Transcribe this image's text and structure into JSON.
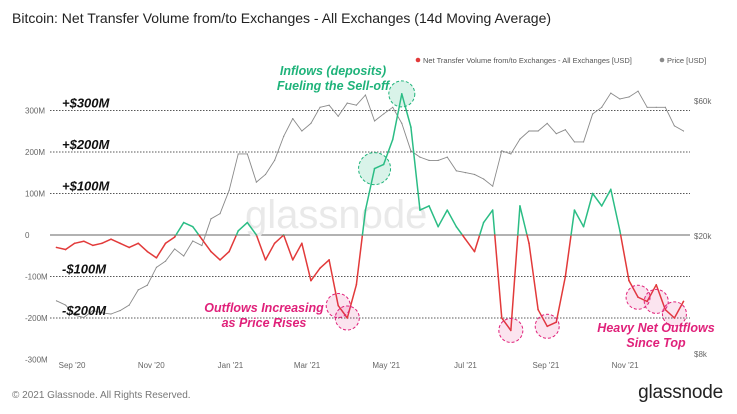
{
  "title": "Bitcoin: Net Transfer Volume from/to Exchanges - All Exchanges (14d Moving Average)",
  "footer": "© 2021 Glassnode. All Rights Reserved.",
  "brand": "glassnode",
  "watermark": "glassnode",
  "colors": {
    "net_positive": "#2bbd85",
    "net_negative": "#e23a3a",
    "price": "#8a8a8a",
    "highlight_green": "#1fb37a",
    "highlight_pink": "#e0217a"
  },
  "chart_data": {
    "type": "line",
    "title": "Bitcoin: Net Transfer Volume from/to Exchanges - All Exchanges (14d Moving Average)",
    "x_ticks": [
      "Sep '20",
      "Nov '20",
      "Jan '21",
      "Mar '21",
      "May '21",
      "Jul '21",
      "Sep '21",
      "Nov '21"
    ],
    "y_left_ticks": [
      "300M",
      "200M",
      "100M",
      "0",
      "-100M",
      "-200M",
      "-300M"
    ],
    "y_left_range": [
      -300000000,
      300000000
    ],
    "y_right_ticks": [
      "$60k",
      "$20k",
      "$8k"
    ],
    "y_right_scale": "log",
    "legend_placement": "top-right",
    "series": [
      {
        "name": "Net Transfer Volume from/to Exchanges - All Exchanges [USD]",
        "unit": "USD",
        "values": [
          [
            "2020-08-20",
            -30
          ],
          [
            "2020-08-27",
            -35
          ],
          [
            "2020-09-03",
            -20
          ],
          [
            "2020-09-10",
            -15
          ],
          [
            "2020-09-17",
            -25
          ],
          [
            "2020-09-24",
            -20
          ],
          [
            "2020-10-01",
            -10
          ],
          [
            "2020-10-08",
            -20
          ],
          [
            "2020-10-15",
            -30
          ],
          [
            "2020-10-22",
            -20
          ],
          [
            "2020-10-29",
            -40
          ],
          [
            "2020-11-05",
            -55
          ],
          [
            "2020-11-12",
            -20
          ],
          [
            "2020-11-19",
            -5
          ],
          [
            "2020-11-26",
            30
          ],
          [
            "2020-12-03",
            20
          ],
          [
            "2020-12-10",
            -10
          ],
          [
            "2020-12-17",
            -40
          ],
          [
            "2020-12-24",
            -60
          ],
          [
            "2020-12-31",
            -40
          ],
          [
            "2021-01-07",
            10
          ],
          [
            "2021-01-14",
            30
          ],
          [
            "2021-01-21",
            0
          ],
          [
            "2021-01-28",
            -60
          ],
          [
            "2021-02-04",
            -20
          ],
          [
            "2021-02-11",
            0
          ],
          [
            "2021-02-18",
            -60
          ],
          [
            "2021-02-25",
            -20
          ],
          [
            "2021-03-04",
            -110
          ],
          [
            "2021-03-11",
            -80
          ],
          [
            "2021-03-18",
            -60
          ],
          [
            "2021-03-25",
            -170
          ],
          [
            "2021-04-01",
            -200
          ],
          [
            "2021-04-08",
            -120
          ],
          [
            "2021-04-15",
            60
          ],
          [
            "2021-04-22",
            160
          ],
          [
            "2021-04-29",
            170
          ],
          [
            "2021-05-06",
            230
          ],
          [
            "2021-05-13",
            340
          ],
          [
            "2021-05-20",
            260
          ],
          [
            "2021-05-27",
            60
          ],
          [
            "2021-06-03",
            70
          ],
          [
            "2021-06-10",
            20
          ],
          [
            "2021-06-17",
            60
          ],
          [
            "2021-06-24",
            20
          ],
          [
            "2021-07-01",
            -10
          ],
          [
            "2021-07-08",
            -40
          ],
          [
            "2021-07-15",
            30
          ],
          [
            "2021-07-22",
            60
          ],
          [
            "2021-07-29",
            -200
          ],
          [
            "2021-08-05",
            -230
          ],
          [
            "2021-08-12",
            70
          ],
          [
            "2021-08-19",
            -20
          ],
          [
            "2021-08-26",
            -180
          ],
          [
            "2021-09-02",
            -220
          ],
          [
            "2021-09-09",
            -210
          ],
          [
            "2021-09-16",
            -100
          ],
          [
            "2021-09-23",
            60
          ],
          [
            "2021-09-30",
            20
          ],
          [
            "2021-10-07",
            100
          ],
          [
            "2021-10-14",
            70
          ],
          [
            "2021-10-21",
            110
          ],
          [
            "2021-10-28",
            10
          ],
          [
            "2021-11-04",
            -110
          ],
          [
            "2021-11-11",
            -150
          ],
          [
            "2021-11-18",
            -160
          ],
          [
            "2021-11-25",
            -120
          ],
          [
            "2021-12-02",
            -180
          ],
          [
            "2021-12-09",
            -200
          ],
          [
            "2021-12-16",
            -160
          ]
        ]
      },
      {
        "name": "Price [USD]",
        "unit": "USD",
        "values": [
          [
            "2020-08-20",
            11800
          ],
          [
            "2020-08-27",
            11400
          ],
          [
            "2020-09-03",
            10500
          ],
          [
            "2020-09-10",
            10300
          ],
          [
            "2020-09-17",
            10900
          ],
          [
            "2020-09-24",
            10700
          ],
          [
            "2020-10-01",
            10600
          ],
          [
            "2020-10-08",
            10900
          ],
          [
            "2020-10-15",
            11400
          ],
          [
            "2020-10-22",
            12900
          ],
          [
            "2020-10-29",
            13400
          ],
          [
            "2020-11-05",
            15500
          ],
          [
            "2020-11-12",
            16300
          ],
          [
            "2020-11-19",
            18000
          ],
          [
            "2020-11-26",
            17000
          ],
          [
            "2020-12-03",
            19200
          ],
          [
            "2020-12-10",
            18500
          ],
          [
            "2020-12-17",
            23000
          ],
          [
            "2020-12-24",
            24000
          ],
          [
            "2020-12-31",
            29000
          ],
          [
            "2021-01-07",
            39000
          ],
          [
            "2021-01-14",
            39000
          ],
          [
            "2021-01-21",
            31000
          ],
          [
            "2021-01-28",
            33000
          ],
          [
            "2021-02-04",
            37000
          ],
          [
            "2021-02-11",
            45000
          ],
          [
            "2021-02-18",
            52000
          ],
          [
            "2021-02-25",
            47000
          ],
          [
            "2021-03-04",
            50000
          ],
          [
            "2021-03-11",
            57000
          ],
          [
            "2021-03-18",
            58000
          ],
          [
            "2021-03-25",
            53000
          ],
          [
            "2021-04-01",
            59000
          ],
          [
            "2021-04-08",
            58000
          ],
          [
            "2021-04-15",
            63000
          ],
          [
            "2021-04-22",
            51000
          ],
          [
            "2021-04-29",
            54000
          ],
          [
            "2021-05-06",
            57000
          ],
          [
            "2021-05-13",
            50000
          ],
          [
            "2021-05-20",
            40000
          ],
          [
            "2021-05-27",
            38000
          ],
          [
            "2021-06-03",
            37000
          ],
          [
            "2021-06-10",
            37000
          ],
          [
            "2021-06-17",
            38000
          ],
          [
            "2021-06-24",
            34000
          ],
          [
            "2021-07-01",
            33500
          ],
          [
            "2021-07-08",
            33000
          ],
          [
            "2021-07-15",
            31800
          ],
          [
            "2021-07-22",
            30000
          ],
          [
            "2021-07-29",
            40000
          ],
          [
            "2021-08-05",
            39000
          ],
          [
            "2021-08-12",
            44000
          ],
          [
            "2021-08-19",
            47000
          ],
          [
            "2021-08-26",
            47000
          ],
          [
            "2021-09-02",
            50000
          ],
          [
            "2021-09-09",
            46000
          ],
          [
            "2021-09-16",
            47500
          ],
          [
            "2021-09-23",
            43000
          ],
          [
            "2021-09-30",
            43000
          ],
          [
            "2021-10-07",
            54000
          ],
          [
            "2021-10-14",
            57000
          ],
          [
            "2021-10-21",
            64000
          ],
          [
            "2021-10-28",
            61000
          ],
          [
            "2021-11-04",
            62000
          ],
          [
            "2021-11-11",
            65000
          ],
          [
            "2021-11-18",
            57000
          ],
          [
            "2021-11-25",
            57000
          ],
          [
            "2021-12-02",
            57000
          ],
          [
            "2021-12-09",
            49000
          ],
          [
            "2021-12-16",
            47000
          ]
        ]
      }
    ],
    "reference_lines": [
      {
        "value": 300000000,
        "label": "+$300M"
      },
      {
        "value": 200000000,
        "label": "+$200M"
      },
      {
        "value": 100000000,
        "label": "+$100M"
      },
      {
        "value": 0,
        "label": ""
      },
      {
        "value": -100000000,
        "label": "-$100M"
      },
      {
        "value": -200000000,
        "label": "-$200M"
      }
    ],
    "annotations": [
      {
        "text": [
          "Inflows (deposits)",
          "Fueling the Sell-off"
        ],
        "color": "green"
      },
      {
        "text": [
          "Outflows Increasing",
          "as Price Rises"
        ],
        "color": "pink"
      },
      {
        "text": [
          "Heavy Net Outflows",
          "Since Top"
        ],
        "color": "pink"
      }
    ]
  }
}
